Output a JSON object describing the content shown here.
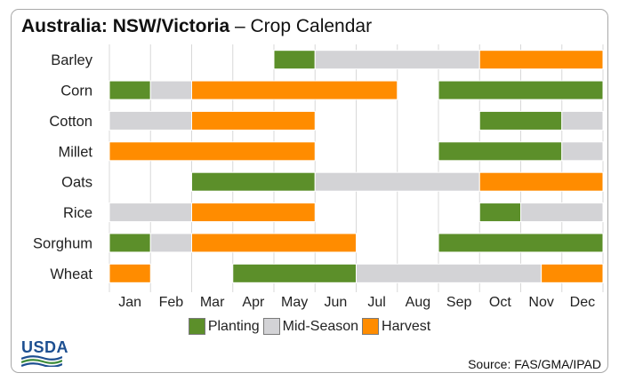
{
  "title": {
    "bold": "Australia: NSW/Victoria",
    "rest": " – Crop Calendar"
  },
  "logo_text": "USDA",
  "source": "Source: FAS/GMA/IPAD",
  "colors": {
    "Planting": "#5c8f2a",
    "Mid-Season": "#d3d3d6",
    "Harvest": "#ff8c00",
    "grid": "#d8d8d8",
    "logo": "#1d4f91"
  },
  "chart_data": {
    "type": "bar",
    "subtype": "gantt",
    "months": [
      "Jan",
      "Feb",
      "Mar",
      "Apr",
      "May",
      "Jun",
      "Jul",
      "Aug",
      "Sep",
      "Oct",
      "Nov",
      "Dec"
    ],
    "legend": [
      "Planting",
      "Mid-Season",
      "Harvest"
    ],
    "legend_placement": "bottom",
    "grid": true,
    "crops": [
      {
        "name": "Barley",
        "segments": [
          {
            "stage": "Planting",
            "start": 4,
            "end": 5
          },
          {
            "stage": "Mid-Season",
            "start": 5,
            "end": 9
          },
          {
            "stage": "Harvest",
            "start": 9,
            "end": 12
          }
        ]
      },
      {
        "name": "Corn",
        "segments": [
          {
            "stage": "Planting",
            "start": 0,
            "end": 1
          },
          {
            "stage": "Mid-Season",
            "start": 1,
            "end": 2
          },
          {
            "stage": "Harvest",
            "start": 2,
            "end": 7
          },
          {
            "stage": "Planting",
            "start": 8,
            "end": 12
          }
        ]
      },
      {
        "name": "Cotton",
        "segments": [
          {
            "stage": "Mid-Season",
            "start": 0,
            "end": 2
          },
          {
            "stage": "Harvest",
            "start": 2,
            "end": 5
          },
          {
            "stage": "Planting",
            "start": 9,
            "end": 11
          },
          {
            "stage": "Mid-Season",
            "start": 11,
            "end": 12
          }
        ]
      },
      {
        "name": "Millet",
        "segments": [
          {
            "stage": "Harvest",
            "start": 0,
            "end": 5
          },
          {
            "stage": "Planting",
            "start": 8,
            "end": 11
          },
          {
            "stage": "Mid-Season",
            "start": 11,
            "end": 12
          }
        ]
      },
      {
        "name": "Oats",
        "segments": [
          {
            "stage": "Planting",
            "start": 2,
            "end": 5
          },
          {
            "stage": "Mid-Season",
            "start": 5,
            "end": 9
          },
          {
            "stage": "Harvest",
            "start": 9,
            "end": 12
          }
        ]
      },
      {
        "name": "Rice",
        "segments": [
          {
            "stage": "Mid-Season",
            "start": 0,
            "end": 2
          },
          {
            "stage": "Harvest",
            "start": 2,
            "end": 5
          },
          {
            "stage": "Planting",
            "start": 9,
            "end": 10
          },
          {
            "stage": "Mid-Season",
            "start": 10,
            "end": 12
          }
        ]
      },
      {
        "name": "Sorghum",
        "segments": [
          {
            "stage": "Planting",
            "start": 0,
            "end": 1
          },
          {
            "stage": "Mid-Season",
            "start": 1,
            "end": 2
          },
          {
            "stage": "Harvest",
            "start": 2,
            "end": 6
          },
          {
            "stage": "Planting",
            "start": 8,
            "end": 12
          }
        ]
      },
      {
        "name": "Wheat",
        "segments": [
          {
            "stage": "Harvest",
            "start": 0,
            "end": 1
          },
          {
            "stage": "Planting",
            "start": 3,
            "end": 6
          },
          {
            "stage": "Mid-Season",
            "start": 6,
            "end": 10.5
          },
          {
            "stage": "Harvest",
            "start": 10.5,
            "end": 12
          }
        ]
      }
    ]
  }
}
